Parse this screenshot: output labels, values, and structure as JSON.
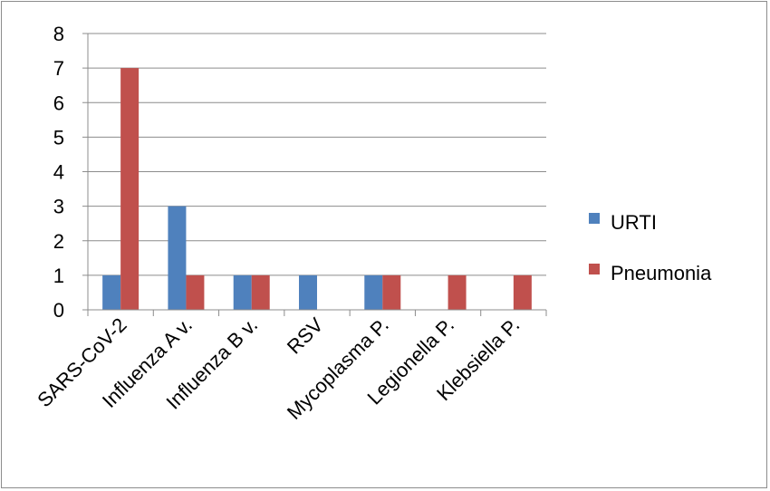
{
  "chart_data": {
    "type": "bar",
    "title": "",
    "xlabel": "",
    "ylabel": "",
    "ylim": [
      0,
      8
    ],
    "yticks": [
      "0",
      "1",
      "2",
      "3",
      "4",
      "5",
      "6",
      "7",
      "8"
    ],
    "categories": [
      "SARS-CoV-2",
      "Influenza A v.",
      "Influenza B v.",
      "RSV",
      "Mycoplasma P.",
      "Legionella P.",
      "Klebsiella P."
    ],
    "series": [
      {
        "name": "URTI",
        "color": "#4f81bd",
        "values": [
          1,
          3,
          1,
          1,
          1,
          0,
          0
        ]
      },
      {
        "name": "Pneumonia",
        "color": "#c0504d",
        "values": [
          7,
          1,
          1,
          0,
          1,
          1,
          1
        ]
      }
    ],
    "grid": true,
    "legend_position": "right"
  }
}
